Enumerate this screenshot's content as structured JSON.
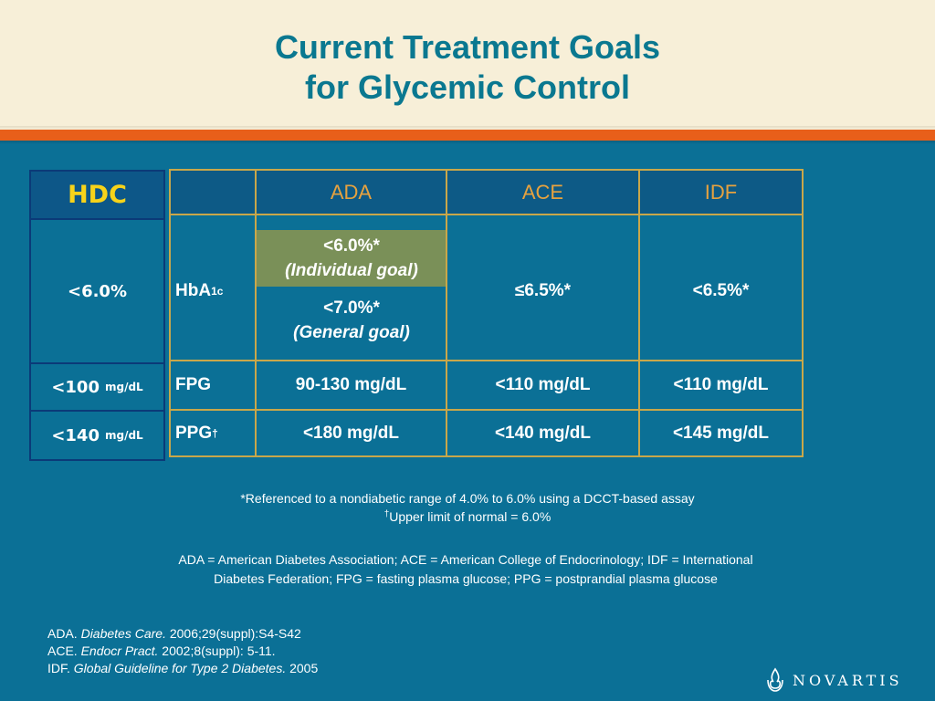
{
  "slide": {
    "title_line1": "Current Treatment Goals",
    "title_line2": "for Glycemic Control"
  },
  "hdc": {
    "header": "HDC",
    "hba1c": "<6.0%",
    "fpg_value": "<100",
    "fpg_unit": "mg/dL",
    "ppg_value": "<140",
    "ppg_unit": "mg/dL"
  },
  "table": {
    "columns": [
      "ADA",
      "ACE",
      "IDF"
    ],
    "rows": {
      "hba1c": {
        "label": "HbA",
        "label_sub": "1c",
        "ada_individual": "<6.0%*",
        "ada_individual_note": "(Individual goal)",
        "ada_general": "<7.0%*",
        "ada_general_note": "(General goal)",
        "ace": "≤6.5%*",
        "idf": "<6.5%*"
      },
      "fpg": {
        "label": "FPG",
        "ada": "90-130 mg/dL",
        "ace": "<110 mg/dL",
        "idf": "<110 mg/dL"
      },
      "ppg": {
        "label": "PPG",
        "label_sup": "†",
        "ada": "<180 mg/dL",
        "ace": "<140 mg/dL",
        "idf": "<145 mg/dL"
      }
    }
  },
  "footnotes": {
    "asterisk": "*Referenced to a nondiabetic range of 4.0% to 6.0% using a DCCT-based assay",
    "dagger_mark": "†",
    "dagger": "Upper limit of normal = 6.0%"
  },
  "definitions": {
    "line1": "ADA = American Diabetes Association; ACE = American College of Endocrinology; IDF = International",
    "line2": "Diabetes Federation; FPG = fasting plasma glucose; PPG = postprandial plasma glucose"
  },
  "references": [
    {
      "org": "ADA.",
      "source": "Diabetes Care.",
      "detail": "2006;29(suppl):S4-S42"
    },
    {
      "org": "ACE.",
      "source": "Endocr Pract.",
      "detail": "2002;8(suppl): 5-11."
    },
    {
      "org": "IDF.",
      "source": "Global Guideline for Type 2 Diabetes.",
      "detail": "2005"
    }
  ],
  "logo": {
    "text": "NOVARTIS"
  },
  "colors": {
    "background": "#0b7096",
    "header_bg": "#f7efd8",
    "accent_orange": "#e85f1a",
    "title": "#0a7890",
    "grid_gold": "#c9a74a",
    "hdc_label": "#f7d31a",
    "individual_goal_bg": "#7a9058"
  }
}
